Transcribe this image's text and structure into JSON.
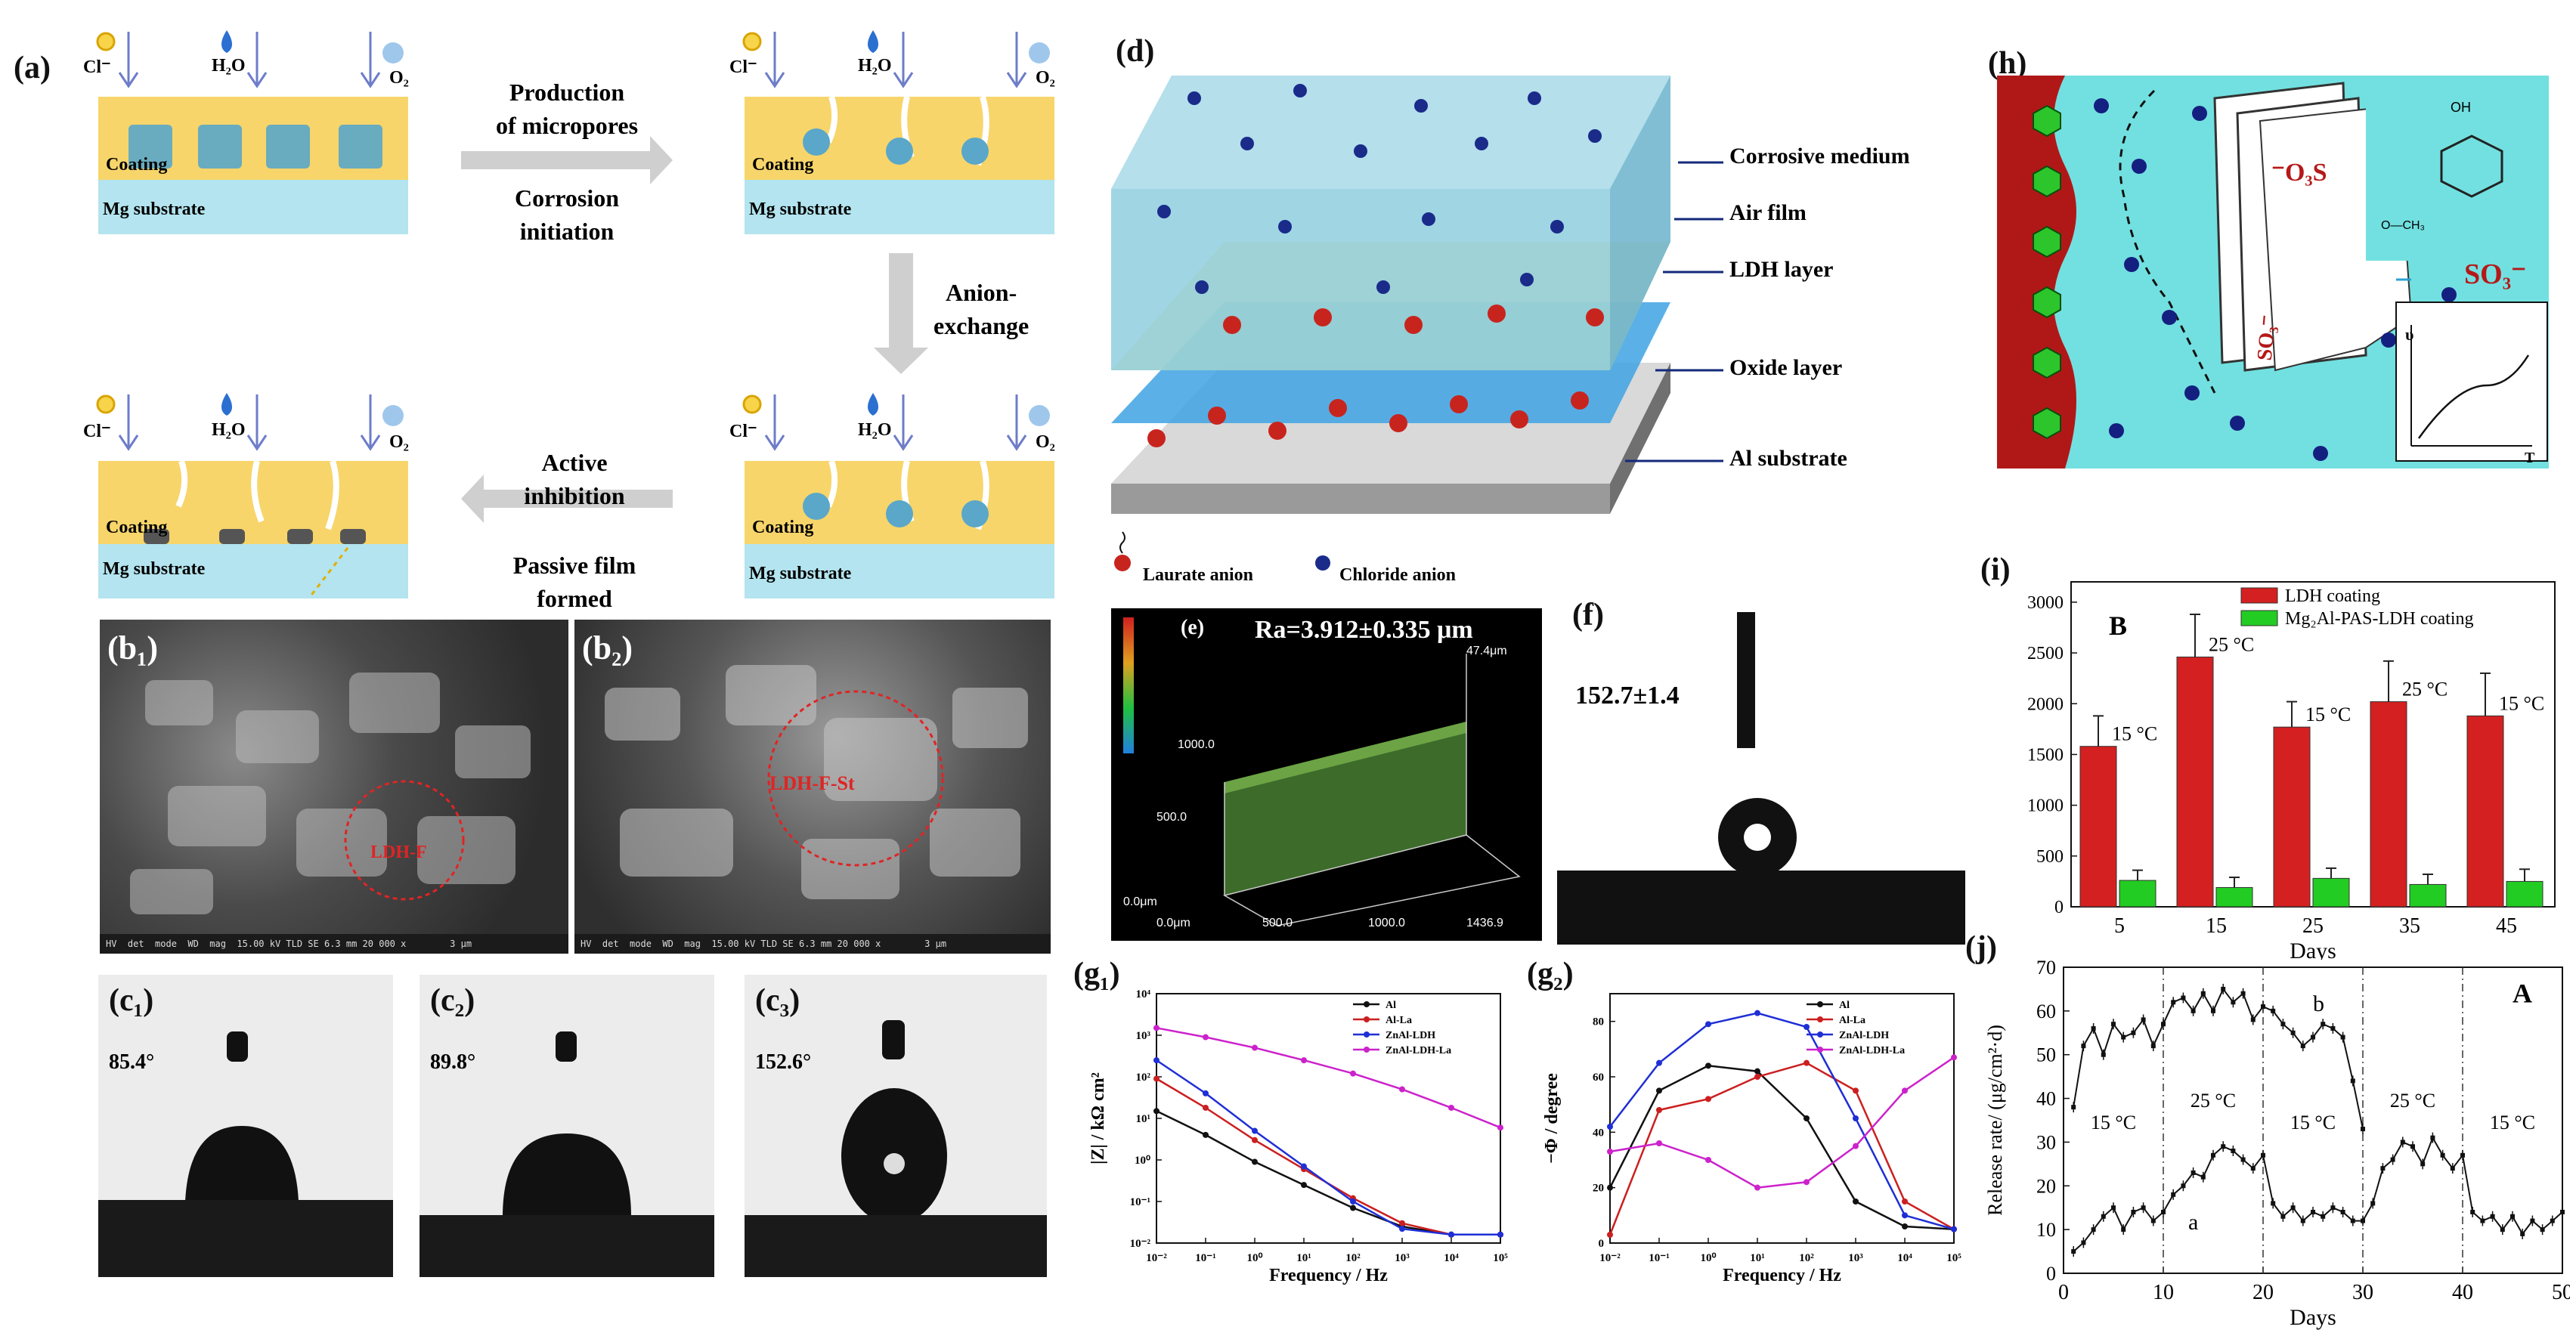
{
  "panel_a": {
    "label": "(a)",
    "ions": {
      "cl": "Cl⁻",
      "h2o": "H₂O",
      "o2": "O₂"
    },
    "coating": "Coating",
    "substrate": "Mg substrate",
    "step1": [
      "Production",
      "of micropores",
      "Corrosion",
      "initiation"
    ],
    "step2": [
      "Anion-",
      "exchange"
    ],
    "step3": [
      "Active",
      "inhibition",
      "Passive film",
      "formed"
    ]
  },
  "panel_b1": {
    "label": "(b₁)",
    "circle_label": "LDH-F"
  },
  "panel_b2": {
    "label": "(b₂)",
    "circle_label": "LDH-F-St"
  },
  "panel_c1": {
    "label": "(c₁)",
    "angle": "85.4°"
  },
  "panel_c2": {
    "label": "(c₂)",
    "angle": "89.8°"
  },
  "panel_c3": {
    "label": "(c₃)",
    "angle": "152.6°"
  },
  "panel_d": {
    "label": "(d)",
    "layers": [
      "Corrosive medium",
      "Air film",
      "LDH layer",
      "Oxide layer",
      "Al substrate"
    ],
    "legend": [
      "Laurate anion",
      "Chloride anion"
    ]
  },
  "panel_e": {
    "label": "(e)",
    "ra": "Ra=3.912±0.335 μm",
    "zmax": "47.4μm",
    "ticks_y": [
      "1000.0",
      "500.0",
      "0.0μm"
    ],
    "ticks_x": [
      "0.0μm",
      "500.0",
      "1000.0",
      "1436.9"
    ]
  },
  "panel_f": {
    "label": "(f)",
    "angle": "152.7±1.4"
  },
  "panel_g1": {
    "label": "(g₁)"
  },
  "panel_g2": {
    "label": "(g₂)"
  },
  "panel_h": {
    "label": "(h)",
    "so3_a": "⁻O₃S",
    "so3_b": "SO₃⁻",
    "so3_c": "SO₃⁻",
    "oh": "OH",
    "och3": "O—CH₃",
    "axis_y": "υ",
    "axis_x": "T"
  },
  "panel_i": {
    "label": "(i)"
  },
  "panel_j": {
    "label": "(j)"
  },
  "chart_data": [
    {
      "id": "g1",
      "type": "line",
      "xlabel": "Frequency / Hz",
      "ylabel": "|Z| / kΩ cm²",
      "xscale": "log",
      "yscale": "log",
      "xlim": [
        0.01,
        100000
      ],
      "ylim": [
        0.01,
        10000
      ],
      "xticks": [
        "10⁻²",
        "10⁻¹",
        "10⁰",
        "10¹",
        "10²",
        "10³",
        "10⁴",
        "10⁵"
      ],
      "yticks": [
        "10⁻²",
        "10⁻¹",
        "10⁰",
        "10¹",
        "10²",
        "10³",
        "10⁴"
      ],
      "series": [
        {
          "name": "Al",
          "color": "#111111",
          "x": [
            0.01,
            0.1,
            1,
            10,
            100,
            1000,
            10000,
            100000
          ],
          "y": [
            15,
            4,
            0.9,
            0.25,
            0.07,
            0.025,
            0.016,
            0.016
          ]
        },
        {
          "name": "Al-La",
          "color": "#cc1f1f",
          "x": [
            0.01,
            0.1,
            1,
            10,
            100,
            1000,
            10000,
            100000
          ],
          "y": [
            90,
            18,
            3,
            0.6,
            0.12,
            0.03,
            0.016,
            0.016
          ]
        },
        {
          "name": "ZnAl-LDH",
          "color": "#1f2fd6",
          "x": [
            0.01,
            0.1,
            1,
            10,
            100,
            1000,
            10000,
            100000
          ],
          "y": [
            250,
            40,
            5,
            0.7,
            0.1,
            0.022,
            0.016,
            0.016
          ]
        },
        {
          "name": "ZnAl-LDH-La",
          "color": "#cc22cc",
          "x": [
            0.01,
            0.1,
            1,
            10,
            100,
            1000,
            10000,
            100000
          ],
          "y": [
            1500,
            900,
            500,
            250,
            120,
            50,
            18,
            6
          ]
        }
      ]
    },
    {
      "id": "g2",
      "type": "line",
      "xlabel": "Frequency / Hz",
      "ylabel": "−Φ / degree",
      "xscale": "log",
      "xlim": [
        0.01,
        100000
      ],
      "ylim": [
        0,
        90
      ],
      "xticks": [
        "10⁻²",
        "10⁻¹",
        "10⁰",
        "10¹",
        "10²",
        "10³",
        "10⁴",
        "10⁵"
      ],
      "yticks": [
        "0",
        "20",
        "40",
        "60",
        "80"
      ],
      "series": [
        {
          "name": "Al",
          "color": "#111111",
          "x": [
            0.01,
            0.1,
            1,
            10,
            100,
            1000,
            10000,
            100000
          ],
          "y": [
            20,
            55,
            64,
            62,
            45,
            15,
            6,
            5
          ]
        },
        {
          "name": "Al-La",
          "color": "#cc1f1f",
          "x": [
            0.01,
            0.1,
            1,
            10,
            100,
            1000,
            10000,
            100000
          ],
          "y": [
            3,
            48,
            52,
            60,
            65,
            55,
            15,
            5
          ]
        },
        {
          "name": "ZnAl-LDH",
          "color": "#1f2fd6",
          "x": [
            0.01,
            0.1,
            1,
            10,
            100,
            1000,
            10000,
            100000
          ],
          "y": [
            42,
            65,
            79,
            83,
            78,
            45,
            10,
            5
          ]
        },
        {
          "name": "ZnAl-LDH-La",
          "color": "#cc22cc",
          "x": [
            0.01,
            0.1,
            1,
            10,
            100,
            1000,
            10000,
            100000
          ],
          "y": [
            33,
            36,
            30,
            20,
            22,
            35,
            55,
            67
          ]
        }
      ]
    },
    {
      "id": "i",
      "type": "bar",
      "annotation": "B",
      "xlabel": "Days",
      "ylim": [
        0,
        3200
      ],
      "yticks": [
        0,
        500,
        1000,
        1500,
        2000,
        2500,
        3000
      ],
      "categories": [
        "5",
        "15",
        "25",
        "35",
        "45"
      ],
      "temperature_labels": [
        "15 °C",
        "25 °C",
        "15 °C",
        "25 °C",
        "15 °C"
      ],
      "series": [
        {
          "name": "LDH coating",
          "color": "#d42020",
          "values": [
            1580,
            2460,
            1770,
            2020,
            1880
          ],
          "errors": [
            300,
            420,
            250,
            400,
            420
          ]
        },
        {
          "name": "Mg₂Al-PAS-LDH coating",
          "color": "#22cc22",
          "values": [
            260,
            190,
            280,
            220,
            250
          ],
          "errors": [
            100,
            100,
            100,
            100,
            120
          ]
        }
      ]
    },
    {
      "id": "j",
      "type": "line",
      "annotation": "A",
      "xlabel": "Days",
      "ylabel": "Release rate/ (μg/cm²·d)",
      "xlim": [
        0,
        50
      ],
      "ylim": [
        0,
        70
      ],
      "xticks": [
        0,
        10,
        20,
        30,
        40,
        50
      ],
      "yticks": [
        0,
        10,
        20,
        30,
        40,
        50,
        60,
        70
      ],
      "dividers": [
        10,
        20,
        30,
        40
      ],
      "period_labels": [
        "15 °C",
        "25 °C",
        "15 °C",
        "25 °C",
        "15 °C"
      ],
      "series": [
        {
          "name": "b",
          "color": "#111111",
          "x": [
            1,
            2,
            3,
            4,
            5,
            6,
            7,
            8,
            9,
            10,
            11,
            12,
            13,
            14,
            15,
            16,
            17,
            18,
            19,
            20,
            21,
            22,
            23,
            24,
            25,
            26,
            27,
            28,
            29,
            30
          ],
          "y": [
            38,
            52,
            56,
            50,
            57,
            54,
            55,
            58,
            52,
            57,
            62,
            63,
            60,
            64,
            60,
            65,
            62,
            64,
            58,
            61,
            60,
            57,
            55,
            52,
            54,
            57,
            56,
            54,
            44,
            33
          ]
        },
        {
          "name": "a",
          "color": "#111111",
          "x": [
            1,
            2,
            3,
            4,
            5,
            6,
            7,
            8,
            9,
            10,
            11,
            12,
            13,
            14,
            15,
            16,
            17,
            18,
            19,
            20,
            21,
            22,
            23,
            24,
            25,
            26,
            27,
            28,
            29,
            30,
            31,
            32,
            33,
            34,
            35,
            36,
            37,
            38,
            39,
            40,
            41,
            42,
            43,
            44,
            45,
            46,
            47,
            48,
            49,
            50
          ],
          "y": [
            5,
            7,
            10,
            13,
            15,
            10,
            14,
            15,
            12,
            14,
            18,
            20,
            23,
            22,
            27,
            29,
            28,
            26,
            24,
            27,
            16,
            13,
            15,
            12,
            14,
            13,
            15,
            14,
            12,
            12,
            16,
            24,
            26,
            30,
            29,
            25,
            31,
            27,
            24,
            27,
            14,
            12,
            13,
            10,
            13,
            9,
            12,
            10,
            12,
            14
          ]
        }
      ]
    }
  ]
}
